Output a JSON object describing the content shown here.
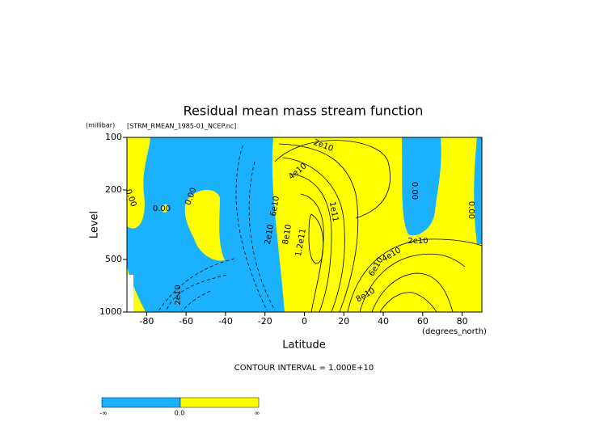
{
  "chart_data": {
    "type": "contour",
    "title": "Residual mean mass stream function",
    "subtitle": "[STRM_RMEAN_1985-01_NCEP.nc]",
    "y_unit": "(millibar)",
    "x_unit": "(degrees_north)",
    "y_label": "Level",
    "x_label": "Latitude",
    "note": "CONTOUR INTERVAL = 1.000E+10",
    "xlim": [
      -90,
      90
    ],
    "xticks": [
      -80,
      -60,
      -40,
      -20,
      0,
      20,
      40,
      60,
      80
    ],
    "ylim": [
      1000,
      100
    ],
    "yticks": [
      100,
      200,
      500,
      1000
    ],
    "yscale": "log",
    "fill_colors": [
      "#1ab2ff",
      "#ffff00"
    ],
    "contour_labels": [
      "0.00",
      "0.00",
      "2e10",
      "2e10",
      "2e10",
      "4e10",
      "6e10",
      "8e10",
      "1e11",
      "1.2e11",
      "2e10",
      "4e10",
      "6e10",
      "8e10",
      "0.00",
      "0.00",
      "0.00"
    ],
    "colorbar_labels": [
      "-∞",
      "0.0",
      "∞"
    ]
  }
}
